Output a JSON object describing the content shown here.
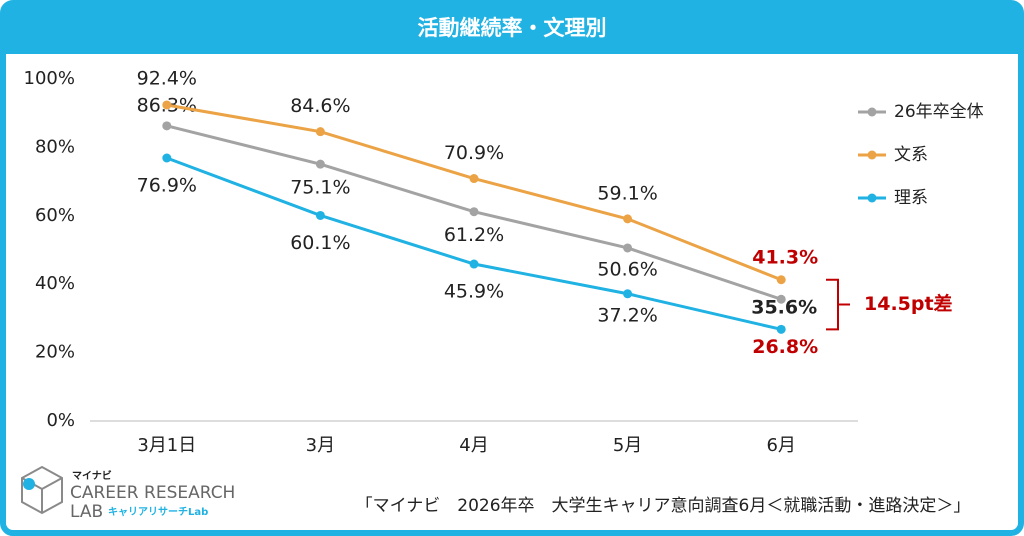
{
  "chart_data": {
    "type": "line",
    "title": "活動継続率・文理別",
    "categories": [
      "3月1日",
      "3月",
      "4月",
      "5月",
      "6月"
    ],
    "series": [
      {
        "name": "26年卒全体",
        "color": "#a3a3a3",
        "values": [
          86.3,
          75.1,
          61.2,
          50.6,
          35.6
        ],
        "value_labels": [
          "86.3%",
          "75.1%",
          "61.2%",
          "50.6%",
          "35.6%"
        ]
      },
      {
        "name": "文系",
        "color": "#eba345",
        "values": [
          92.4,
          84.6,
          70.9,
          59.1,
          41.3
        ],
        "value_labels": [
          "92.4%",
          "84.6%",
          "70.9%",
          "59.1%",
          "41.3%"
        ]
      },
      {
        "name": "理系",
        "color": "#1fb2e3",
        "values": [
          76.9,
          60.1,
          45.9,
          37.2,
          26.8
        ],
        "value_labels": [
          "76.9%",
          "60.1%",
          "45.9%",
          "37.2%",
          "26.8%"
        ]
      }
    ],
    "ylim": [
      0,
      100
    ],
    "yticks": [
      {
        "value": 0,
        "label": "0%"
      },
      {
        "value": 20,
        "label": "20%"
      },
      {
        "value": 40,
        "label": "40%"
      },
      {
        "value": 60,
        "label": "60%"
      },
      {
        "value": 80,
        "label": "80%"
      },
      {
        "value": 100,
        "label": "100%"
      }
    ],
    "annotation": "14.5pt差",
    "source": "「マイナビ　2026年卒　大学生キャリア意向調査6月＜就職活動・進路決定＞」"
  },
  "logo": {
    "brand": "マイナビ",
    "name": "CAREER RESEARCH",
    "lab": "LAB",
    "sub": "キャリアリサーチLab"
  }
}
